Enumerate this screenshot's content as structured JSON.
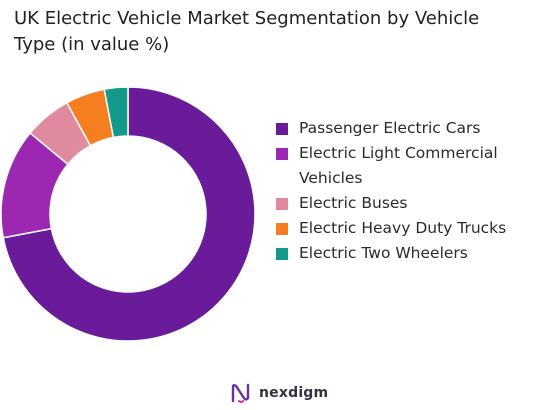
{
  "title_line1": "UK Electric Vehicle Market Segmentation by Vehicle",
  "title_line2": "Type (in value %)",
  "chart_data": {
    "type": "pie",
    "donut": true,
    "title": "UK Electric Vehicle Market Segmentation by Vehicle Type (in value %)",
    "legend_position": "right",
    "series": [
      {
        "name": "Passenger Electric Cars",
        "value": 72,
        "color": "#6a1b9a"
      },
      {
        "name": "Electric Light Commercial Vehicles",
        "value": 14,
        "color": "#9c27b0"
      },
      {
        "name": "Electric Buses",
        "value": 6,
        "color": "#e08aa0"
      },
      {
        "name": "Electric Heavy Duty Trucks",
        "value": 5,
        "color": "#f57f20"
      },
      {
        "name": "Electric Two Wheelers",
        "value": 3,
        "color": "#149a8a"
      }
    ]
  },
  "legend": [
    {
      "label": "Passenger Electric Cars",
      "color": "#6a1b9a"
    },
    {
      "label": "Electric Light Commercial Vehicles",
      "color": "#9c27b0"
    },
    {
      "label": "Electric Buses",
      "color": "#e08aa0"
    },
    {
      "label": "Electric Heavy Duty Trucks",
      "color": "#f57f20"
    },
    {
      "label": "Electric Two Wheelers",
      "color": "#149a8a"
    }
  ],
  "logo": {
    "text": "nexdigm",
    "icon": "nexdigm-logo-icon"
  }
}
